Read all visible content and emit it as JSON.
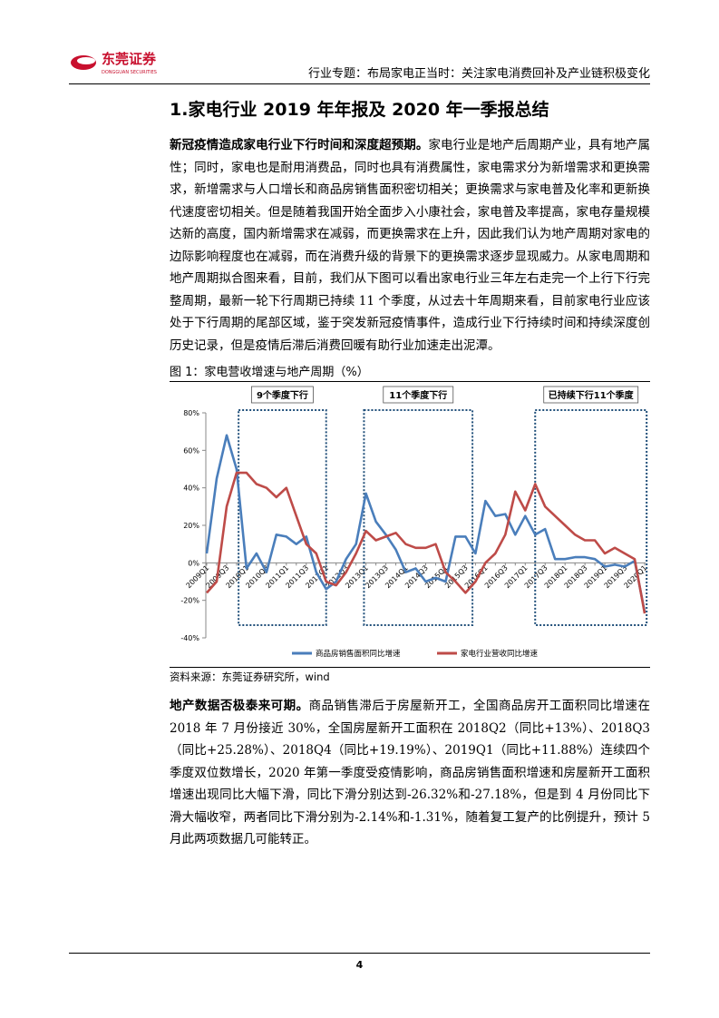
{
  "header": {
    "logo_name": "东莞证券",
    "logo_sub": "DONGGUAN SECURITIES",
    "title": "行业专题：布局家电正当时：关注家电消费回补及产业链积极变化"
  },
  "section": {
    "title": "1.家电行业 2019 年年报及 2020 年一季报总结",
    "paragraphs": [
      {
        "lead": "新冠疫情造成家电行业下行时间和深度超预期。",
        "text": "家电行业是地产后周期产业，具有地产属性；同时，家电也是耐用消费品，同时也具有消费属性，家电需求分为新增需求和更换需求，新增需求与人口增长和商品房销售面积密切相关；更换需求与家电普及化率和更新换代速度密切相关。但是随着我国开始全面步入小康社会，家电普及率提高，家电存量规模达新的高度，国内新增需求在减弱，而更换需求在上升，因此我们认为地产周期对家电的边际影响程度也在减弱，而在消费升级的背景下的更换需求逐步显现威力。从家电周期和地产周期拟合图来看，目前，我们从下图可以看出家电行业三年左右走完一个上行下行完整周期，最新一轮下行周期已持续 11 个季度，从过去十年周期来看，目前家电行业应该处于下行周期的尾部区域，鉴于突发新冠疫情事件，造成行业下行持续时间和持续深度创历史记录，但是疫情后滞后消费回暖有助行业加速走出泥潭。"
      },
      {
        "lead": "地产数据否极泰来可期。",
        "text": "商品销售滞后于房屋新开工，全国商品房开工面积同比增速在 2018 年 7 月份接近 30%，全国房屋新开工面积在 2018Q2（同比+13%）、2018Q3（同比+25.28%）、2018Q4（同比+19.19%）、2019Q1（同比+11.88%）连续四个季度双位数增长，2020 年第一季度受疫情影响，商品房销售面积增速和房屋新开工面积增速出现同比大幅下滑，同比下滑分别达到-26.32%和-27.18%，但是到 4 月份同比下滑大幅收窄，两者同比下滑分别为-2.14%和-1.31%，随着复工复产的比例提升，预计 5 月此两项数据几可能转正。"
      }
    ]
  },
  "figure": {
    "caption": "图 1：家电营收增速与地产周期（%）",
    "source": "资料来源：东莞证券研究所，wind"
  },
  "chart_data": {
    "type": "line",
    "categories": [
      "2009Q1",
      null,
      "2009Q3",
      null,
      "2010Q1",
      null,
      "2010Q3",
      null,
      "2011Q1",
      null,
      "2011Q3",
      null,
      "2012Q1",
      null,
      "2012Q3",
      null,
      "2013Q1",
      null,
      "2013Q3",
      null,
      "2014Q1",
      null,
      "2014Q3",
      null,
      "2015Q1",
      null,
      "2015Q3",
      null,
      "2016Q1",
      null,
      "2016Q3",
      null,
      "2017Q1",
      null,
      "2017Q3",
      null,
      "2018Q1",
      null,
      "2018Q3",
      null,
      "2019Q1",
      null,
      "2019Q3",
      null,
      "2020Q1"
    ],
    "series": [
      {
        "name": "商品房销售面积同比增速",
        "color": "#4a7ebb",
        "values": [
          5,
          45,
          68,
          50,
          -3,
          5,
          -5,
          15,
          14,
          10,
          14,
          -5,
          -14,
          -10,
          2,
          10,
          37,
          22,
          15,
          7,
          -5,
          -3,
          -10,
          -8,
          -10,
          14,
          14,
          5,
          33,
          25,
          26,
          15,
          25,
          15,
          18,
          2,
          2,
          3,
          3,
          2,
          -2,
          -1,
          -2,
          1,
          -26
        ]
      },
      {
        "name": "家电行业营收同比增速",
        "color": "#be4b48",
        "values": [
          -16,
          -10,
          30,
          48,
          48,
          42,
          40,
          35,
          40,
          25,
          10,
          5,
          -10,
          -12,
          -5,
          5,
          17,
          12,
          14,
          16,
          10,
          8,
          8,
          10,
          -5,
          -10,
          -16,
          -10,
          0,
          5,
          15,
          38,
          28,
          42,
          30,
          25,
          20,
          15,
          12,
          12,
          5,
          8,
          5,
          2,
          -27
        ]
      }
    ],
    "annotations": [
      "9个季度下行",
      "11个季度下行",
      "已持续下行11个季度"
    ],
    "ylim": [
      -40,
      80
    ],
    "yticks": [
      {
        "value": -40,
        "label": "-40%"
      },
      {
        "value": -20,
        "label": "-20%"
      },
      {
        "value": 0,
        "label": "0%"
      },
      {
        "value": 20,
        "label": "20%"
      },
      {
        "value": 40,
        "label": "40%"
      },
      {
        "value": 60,
        "label": "60%"
      },
      {
        "value": 80,
        "label": "80%"
      }
    ],
    "grid": false,
    "legend": "bottom"
  },
  "page_number": "4"
}
